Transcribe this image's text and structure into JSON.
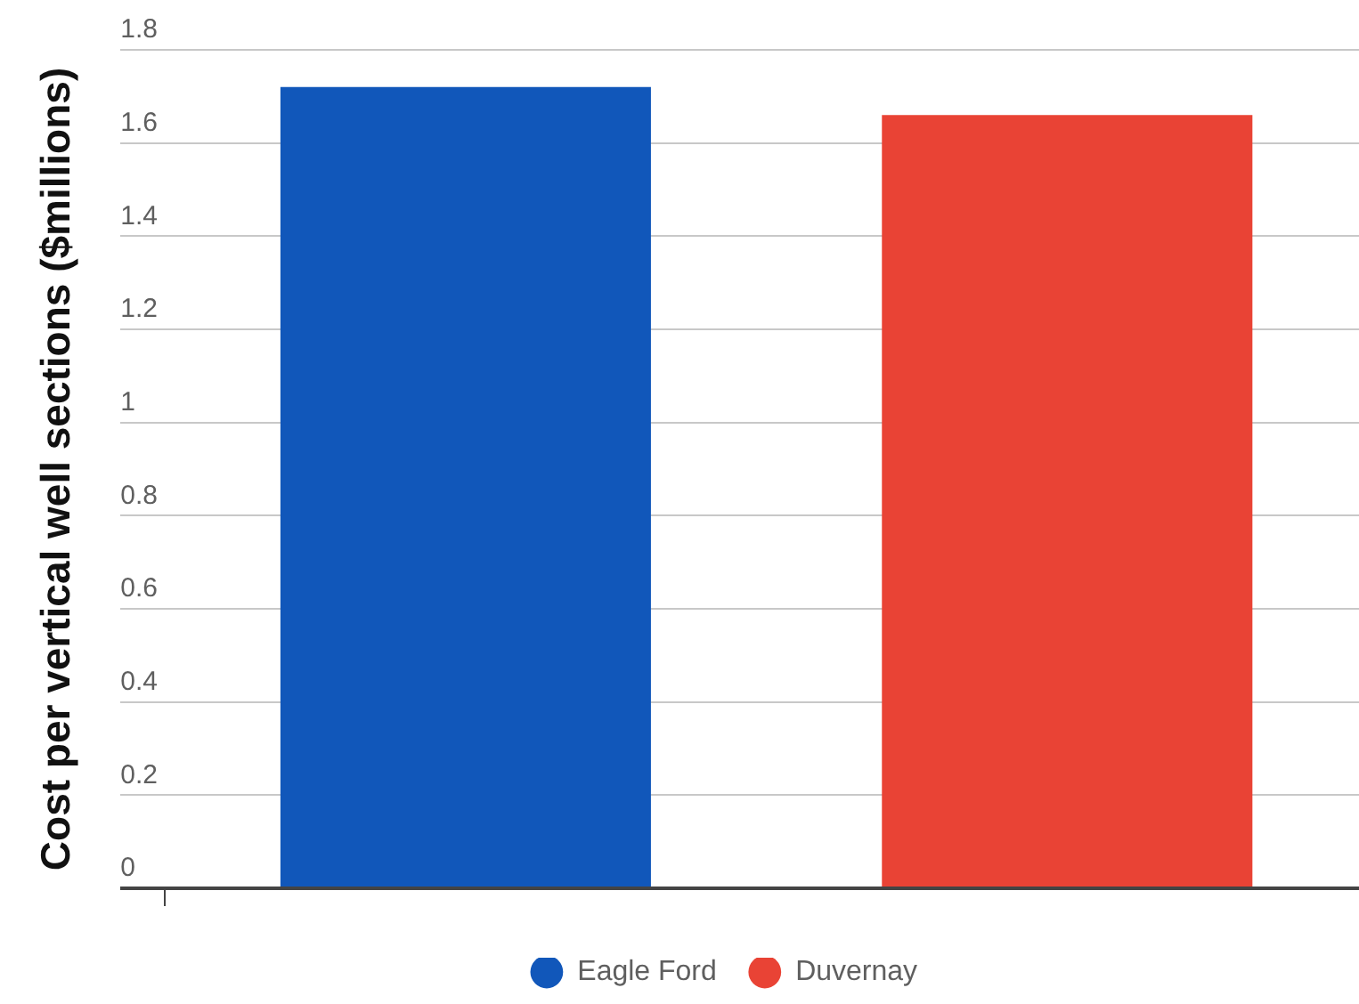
{
  "chart_data": {
    "type": "bar",
    "ylabel": "Cost per vertical well sections ($millions)",
    "categories": [
      null
    ],
    "series": [
      {
        "name": "Eagle Ford",
        "color": "#1157ba",
        "values": [
          1.72
        ]
      },
      {
        "name": "Duvernay",
        "color": "#e94335",
        "values": [
          1.66
        ]
      }
    ],
    "ylim": [
      0,
      1.8
    ],
    "yticks": [
      0,
      0.2,
      0.4,
      0.6,
      0.8,
      1,
      1.2,
      1.4,
      1.6,
      1.8
    ],
    "grid": "y",
    "legend": "bottom"
  }
}
